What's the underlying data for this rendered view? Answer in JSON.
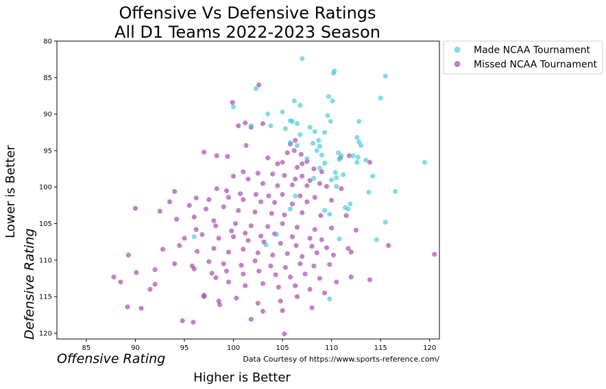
{
  "chart_data": {
    "type": "scatter",
    "title": [
      "Offensive Vs Defensive Ratings",
      "All D1 Teams 2022-2023 Season"
    ],
    "xlabel": "Higher is Better",
    "xlabel_italic": "Offensive Rating",
    "ylabel": "Lower is Better",
    "ylabel_italic": "Defensive Rating",
    "source_note": "Data Courtesy of https://www.sports-reference.com/",
    "xlim": [
      82,
      121
    ],
    "ylim": [
      120.8,
      80
    ],
    "y_inverted": true,
    "x_ticks": [
      85,
      90,
      95,
      100,
      105,
      110,
      115,
      120
    ],
    "y_ticks": [
      80,
      85,
      90,
      95,
      100,
      105,
      110,
      115,
      120
    ],
    "grid": false,
    "legend_position": "outside-top-right",
    "series": [
      {
        "name": "Made NCAA Tournament",
        "color": "#40c8d8",
        "points": [
          [
            107.0,
            82.4
          ],
          [
            110.2,
            84.4
          ],
          [
            110.3,
            84.1
          ],
          [
            115.5,
            84.8
          ],
          [
            102.3,
            86.5
          ],
          [
            109.7,
            87.6
          ],
          [
            110.1,
            88.2
          ],
          [
            106.2,
            88.2
          ],
          [
            115.0,
            87.8
          ],
          [
            100.0,
            89.0
          ],
          [
            106.8,
            88.8
          ],
          [
            105.0,
            89.7
          ],
          [
            103.5,
            90.0
          ],
          [
            105.8,
            90.9
          ],
          [
            106.0,
            91.0
          ],
          [
            109.6,
            90.2
          ],
          [
            109.9,
            91.0
          ],
          [
            112.8,
            91.0
          ],
          [
            101.8,
            91.6
          ],
          [
            103.8,
            91.6
          ],
          [
            106.5,
            91.3
          ],
          [
            105.3,
            92.0
          ],
          [
            107.8,
            91.8
          ],
          [
            106.8,
            92.8
          ],
          [
            108.3,
            92.4
          ],
          [
            109.3,
            92.5
          ],
          [
            112.6,
            93.2
          ],
          [
            112.8,
            93.8
          ],
          [
            113.0,
            94.3
          ],
          [
            108.1,
            94.0
          ],
          [
            108.7,
            93.6
          ],
          [
            106.5,
            94.3
          ],
          [
            108.8,
            94.4
          ],
          [
            108.5,
            95.0
          ],
          [
            109.0,
            95.6
          ],
          [
            110.7,
            95.3
          ],
          [
            111.0,
            95.7
          ],
          [
            112.2,
            95.7
          ],
          [
            112.7,
            95.9
          ],
          [
            110.8,
            96.2
          ],
          [
            113.5,
            96.3
          ],
          [
            112.6,
            96.6
          ],
          [
            107.5,
            96.1
          ],
          [
            119.5,
            96.6
          ],
          [
            108.8,
            97.4
          ],
          [
            110.4,
            98.0
          ],
          [
            111.2,
            98.3
          ],
          [
            110.5,
            98.7
          ],
          [
            114.2,
            98.5
          ],
          [
            108.2,
            98.8
          ],
          [
            110.0,
            99.0
          ],
          [
            110.5,
            99.9
          ],
          [
            106.3,
            101.2
          ],
          [
            113.8,
            100.7
          ],
          [
            116.5,
            100.6
          ],
          [
            111.4,
            102.8
          ],
          [
            111.9,
            102.3
          ],
          [
            109.3,
            103.2
          ],
          [
            109.8,
            103.7
          ],
          [
            111.7,
            103.0
          ],
          [
            105.8,
            103.0
          ],
          [
            115.5,
            104.8
          ],
          [
            104.4,
            106.5
          ],
          [
            114.6,
            107.2
          ],
          [
            110.8,
            107.1
          ],
          [
            96.0,
            106.8
          ],
          [
            103.3,
            107.9
          ],
          [
            109.8,
            115.3
          ],
          [
            105.8,
            93.9
          ],
          [
            109.3,
            96.7
          ]
        ]
      },
      {
        "name": "Missed NCAA Tournament",
        "color": "#a040a8",
        "points": [
          [
            102.6,
            86.0
          ],
          [
            99.9,
            88.4
          ],
          [
            101.2,
            91.2
          ],
          [
            101.8,
            91.8
          ],
          [
            103.0,
            91.3
          ],
          [
            100.5,
            91.6
          ],
          [
            101.3,
            94.3
          ],
          [
            105.8,
            94.1
          ],
          [
            106.3,
            93.6
          ],
          [
            106.2,
            95.0
          ],
          [
            105.5,
            95.3
          ],
          [
            106.9,
            95.5
          ],
          [
            97.0,
            95.2
          ],
          [
            98.3,
            95.7
          ],
          [
            99.4,
            95.8
          ],
          [
            103.5,
            96.0
          ],
          [
            107.0,
            96.8
          ],
          [
            107.5,
            96.5
          ],
          [
            110.9,
            96.0
          ],
          [
            111.8,
            95.7
          ],
          [
            104.5,
            96.8
          ],
          [
            105.0,
            96.6
          ],
          [
            106.5,
            97.3
          ],
          [
            108.2,
            97.5
          ],
          [
            109.0,
            97.9
          ],
          [
            113.9,
            96.6
          ],
          [
            101.0,
            97.9
          ],
          [
            102.5,
            98.1
          ],
          [
            104.0,
            98.2
          ],
          [
            105.2,
            98.4
          ],
          [
            106.3,
            98.9
          ],
          [
            107.0,
            98.5
          ],
          [
            107.8,
            99.1
          ],
          [
            108.8,
            99.5
          ],
          [
            100.0,
            98.5
          ],
          [
            101.5,
            98.9
          ],
          [
            103.0,
            99.5
          ],
          [
            104.5,
            99.8
          ],
          [
            106.0,
            99.7
          ],
          [
            107.5,
            99.8
          ],
          [
            109.5,
            99.9
          ],
          [
            111.0,
            100.2
          ],
          [
            98.3,
            100.2
          ],
          [
            99.3,
            100.5
          ],
          [
            100.7,
            100.9
          ],
          [
            102.3,
            101.0
          ],
          [
            103.6,
            101.2
          ],
          [
            105.0,
            101.0
          ],
          [
            106.8,
            101.2
          ],
          [
            108.3,
            101.4
          ],
          [
            94.0,
            100.6
          ],
          [
            96.2,
            101.5
          ],
          [
            97.5,
            101.7
          ],
          [
            99.5,
            101.4
          ],
          [
            101.0,
            101.7
          ],
          [
            102.8,
            102.0
          ],
          [
            104.2,
            102.1
          ],
          [
            106.0,
            102.3
          ],
          [
            107.5,
            102.0
          ],
          [
            110.0,
            101.8
          ],
          [
            90.0,
            102.9
          ],
          [
            93.5,
            102.0
          ],
          [
            95.5,
            102.5
          ],
          [
            97.2,
            103.0
          ],
          [
            99.0,
            102.7
          ],
          [
            100.5,
            103.2
          ],
          [
            102.2,
            103.4
          ],
          [
            103.9,
            103.6
          ],
          [
            105.2,
            103.8
          ],
          [
            107.0,
            103.5
          ],
          [
            108.9,
            103.9
          ],
          [
            111.5,
            103.9
          ],
          [
            92.5,
            103.3
          ],
          [
            94.2,
            104.4
          ],
          [
            96.0,
            104.1
          ],
          [
            98.0,
            104.6
          ],
          [
            100.2,
            105.0
          ],
          [
            101.8,
            105.3
          ],
          [
            103.5,
            105.4
          ],
          [
            105.0,
            105.0
          ],
          [
            106.5,
            105.5
          ],
          [
            108.3,
            105.8
          ],
          [
            110.0,
            105.6
          ],
          [
            112.5,
            105.9
          ],
          [
            96.2,
            105.8
          ],
          [
            98.2,
            105.3
          ],
          [
            99.8,
            106.0
          ],
          [
            101.2,
            106.3
          ],
          [
            102.8,
            106.7
          ],
          [
            104.2,
            106.4
          ],
          [
            106.0,
            106.8
          ],
          [
            107.8,
            107.0
          ],
          [
            109.0,
            107.2
          ],
          [
            95.0,
            107.0
          ],
          [
            96.8,
            106.5
          ],
          [
            98.5,
            107.0
          ],
          [
            100.0,
            106.8
          ],
          [
            101.5,
            107.3
          ],
          [
            103.1,
            107.5
          ],
          [
            104.8,
            107.7
          ],
          [
            106.4,
            108.0
          ],
          [
            108.0,
            108.1
          ],
          [
            109.5,
            108.3
          ],
          [
            111.7,
            108.4
          ],
          [
            92.8,
            108.5
          ],
          [
            94.5,
            108.0
          ],
          [
            96.3,
            108.8
          ],
          [
            98.0,
            108.4
          ],
          [
            99.5,
            108.9
          ],
          [
            101.0,
            108.5
          ],
          [
            102.5,
            109.0
          ],
          [
            104.0,
            109.3
          ],
          [
            105.5,
            109.1
          ],
          [
            107.0,
            109.5
          ],
          [
            108.5,
            109.0
          ],
          [
            110.2,
            109.3
          ],
          [
            112.0,
            108.9
          ],
          [
            115.8,
            108.0
          ],
          [
            120.5,
            109.2
          ],
          [
            89.3,
            109.3
          ],
          [
            94.0,
            110.5
          ],
          [
            95.8,
            110.8
          ],
          [
            97.5,
            110.2
          ],
          [
            99.0,
            110.5
          ],
          [
            100.8,
            110.7
          ],
          [
            102.2,
            110.1
          ],
          [
            103.8,
            110.8
          ],
          [
            105.3,
            111.0
          ],
          [
            106.8,
            110.5
          ],
          [
            108.2,
            110.8
          ],
          [
            109.8,
            110.6
          ],
          [
            96.0,
            111.2
          ],
          [
            97.8,
            111.8
          ],
          [
            99.3,
            111.5
          ],
          [
            101.0,
            111.9
          ],
          [
            102.6,
            111.5
          ],
          [
            104.3,
            112.0
          ],
          [
            105.8,
            112.3
          ],
          [
            107.3,
            111.9
          ],
          [
            108.8,
            112.5
          ],
          [
            92.0,
            111.3
          ],
          [
            90.1,
            111.7
          ],
          [
            87.8,
            112.3
          ],
          [
            88.5,
            113.0
          ],
          [
            92.0,
            113.3
          ],
          [
            98.2,
            112.4
          ],
          [
            99.5,
            113.0
          ],
          [
            101.2,
            113.5
          ],
          [
            103.0,
            113.2
          ],
          [
            104.6,
            113.7
          ],
          [
            106.3,
            113.5
          ],
          [
            107.8,
            114.0
          ],
          [
            109.3,
            114.5
          ],
          [
            110.5,
            113.0
          ],
          [
            112.0,
            112.3
          ],
          [
            113.9,
            112.7
          ],
          [
            97.0,
            115.0
          ],
          [
            98.5,
            115.6
          ],
          [
            100.3,
            115.2
          ],
          [
            102.5,
            115.9
          ],
          [
            104.8,
            115.6
          ],
          [
            106.5,
            115.0
          ],
          [
            89.2,
            116.4
          ],
          [
            90.6,
            116.6
          ],
          [
            98.6,
            116.1
          ],
          [
            105.0,
            116.9
          ],
          [
            94.8,
            118.3
          ],
          [
            95.9,
            118.5
          ],
          [
            101.8,
            118.1
          ],
          [
            105.2,
            120.1
          ],
          [
            97.0,
            114.8
          ],
          [
            108.0,
            116.5
          ],
          [
            91.5,
            114.0
          ],
          [
            103.0,
            117.0
          ]
        ]
      }
    ]
  }
}
